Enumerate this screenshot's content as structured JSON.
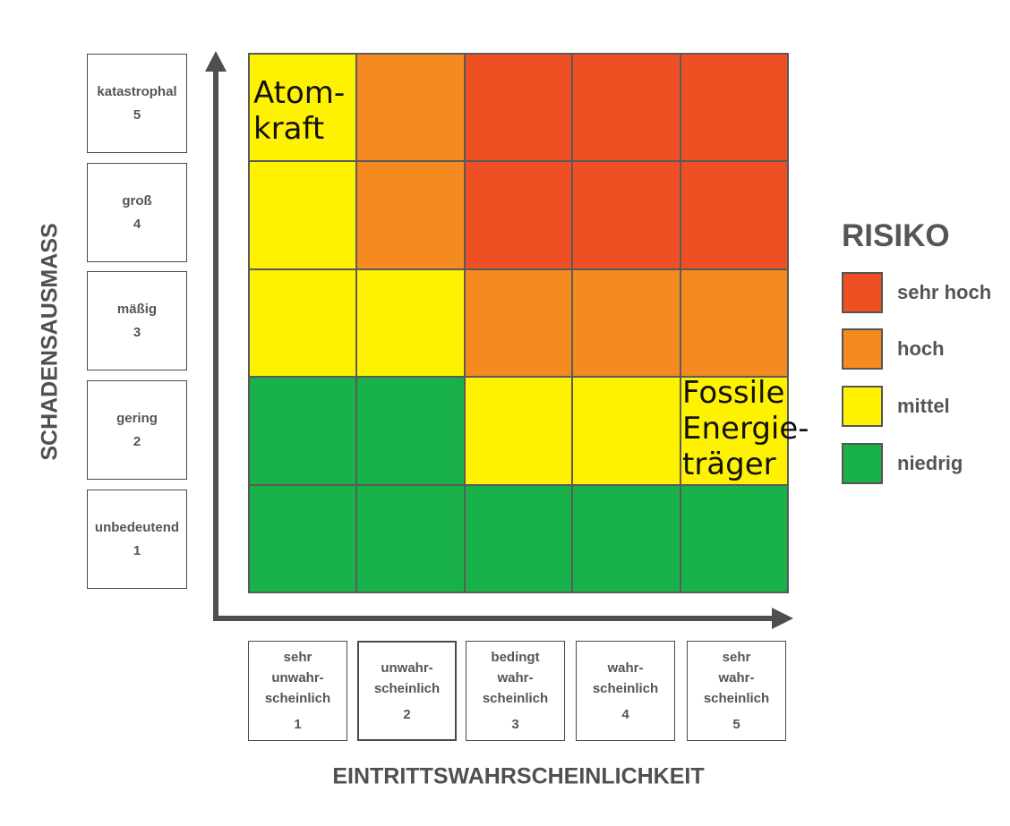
{
  "y_axis": {
    "title": "SCHADENSAUSMASS",
    "levels": [
      {
        "label": "katastrophal",
        "value": "5"
      },
      {
        "label": "groß",
        "value": "4"
      },
      {
        "label": "mäßig",
        "value": "3"
      },
      {
        "label": "gering",
        "value": "2"
      },
      {
        "label": "unbedeutend",
        "value": "1"
      }
    ]
  },
  "x_axis": {
    "title": "EINTRITTSWAHRSCHEINLICHKEIT",
    "levels": [
      {
        "lines": [
          "sehr",
          "unwahr-",
          "scheinlich"
        ],
        "value": "1"
      },
      {
        "lines": [
          "unwahr-",
          "scheinlich"
        ],
        "value": "2"
      },
      {
        "lines": [
          "bedingt",
          "wahr-",
          "scheinlich"
        ],
        "value": "3"
      },
      {
        "lines": [
          "wahr-",
          "scheinlich"
        ],
        "value": "4"
      },
      {
        "lines": [
          "sehr",
          "wahr-",
          "scheinlich"
        ],
        "value": "5"
      }
    ]
  },
  "matrix": [
    [
      "mittel",
      "hoch",
      "sehr hoch",
      "sehr hoch",
      "sehr hoch"
    ],
    [
      "mittel",
      "hoch",
      "sehr hoch",
      "sehr hoch",
      "sehr hoch"
    ],
    [
      "mittel",
      "mittel",
      "hoch",
      "hoch",
      "hoch"
    ],
    [
      "niedrig",
      "niedrig",
      "mittel",
      "mittel",
      "mittel"
    ],
    [
      "niedrig",
      "niedrig",
      "niedrig",
      "niedrig",
      "niedrig"
    ]
  ],
  "annotations": {
    "atom": {
      "lines": [
        "Atom-",
        "kraft"
      ]
    },
    "fossil": {
      "lines": [
        "Fossile",
        "Energie-",
        "träger"
      ]
    }
  },
  "legend": {
    "title": "RISIKO",
    "items": [
      {
        "label": "sehr hoch",
        "color": "#ef5023"
      },
      {
        "label": "hoch",
        "color": "#f58a20"
      },
      {
        "label": "mittel",
        "color": "#fff200"
      },
      {
        "label": "niedrig",
        "color": "#19b24a"
      }
    ]
  }
}
